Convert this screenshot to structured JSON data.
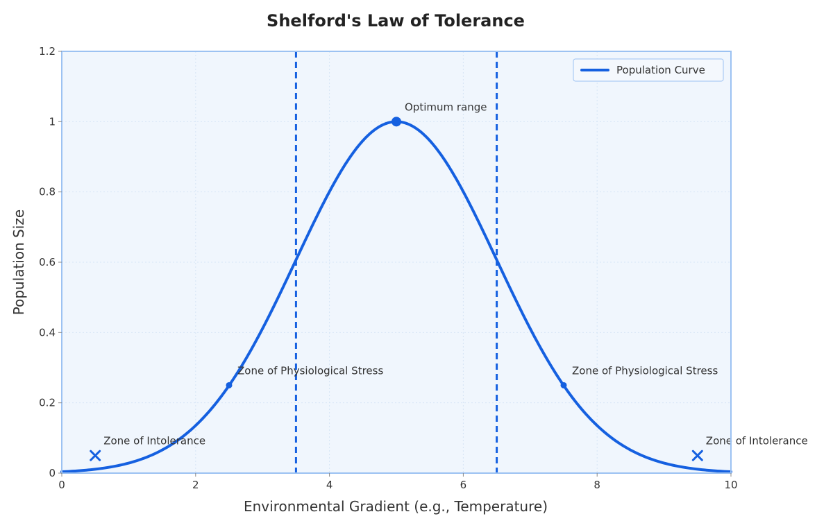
{
  "chart_data": {
    "type": "line",
    "title": "Shelford's Law of Tolerance",
    "xlabel": "Environmental Gradient (e.g., Temperature)",
    "ylabel": "Population Size",
    "xlim": [
      0,
      10
    ],
    "ylim": [
      0,
      1.2
    ],
    "x_ticks": [
      0,
      2,
      4,
      6,
      8,
      10
    ],
    "x_tick_labels": [
      "0",
      "2",
      "4",
      "6",
      "8",
      "10"
    ],
    "y_ticks": [
      0,
      0.2,
      0.4,
      0.6,
      0.8,
      1,
      1.2
    ],
    "y_tick_labels": [
      "0",
      "0.2",
      "0.4",
      "0.6",
      "0.8",
      "1",
      "1.2"
    ],
    "grid": true,
    "legend": {
      "placement": "top-right",
      "entries": [
        "Population Curve"
      ]
    },
    "series": [
      {
        "name": "Population Curve",
        "function": "gaussian",
        "mean": 5,
        "sigma": 1.5,
        "amplitude": 1,
        "x_start": 0,
        "x_end": 10
      }
    ],
    "vertical_lines": [
      3.5,
      6.5
    ],
    "annotations": [
      {
        "text": "Optimum range",
        "x": 5,
        "y": 1.0,
        "marker": "dot-large"
      },
      {
        "text": "Zone of Physiological Stress",
        "x": 2.5,
        "y": 0.25,
        "marker": "dot-small"
      },
      {
        "text": "Zone of Physiological Stress",
        "x": 7.5,
        "y": 0.25,
        "marker": "dot-small"
      },
      {
        "text": "Zone of Intolerance",
        "x": 0.5,
        "y": 0.05,
        "marker": "x"
      },
      {
        "text": "Zone of Intolerance",
        "x": 9.5,
        "y": 0.05,
        "marker": "x"
      }
    ],
    "colors": {
      "line": "#1560E0",
      "plot_background": "#F0F6FD",
      "frame": "#9CC2F2",
      "grid": "#D6E5F6"
    }
  }
}
